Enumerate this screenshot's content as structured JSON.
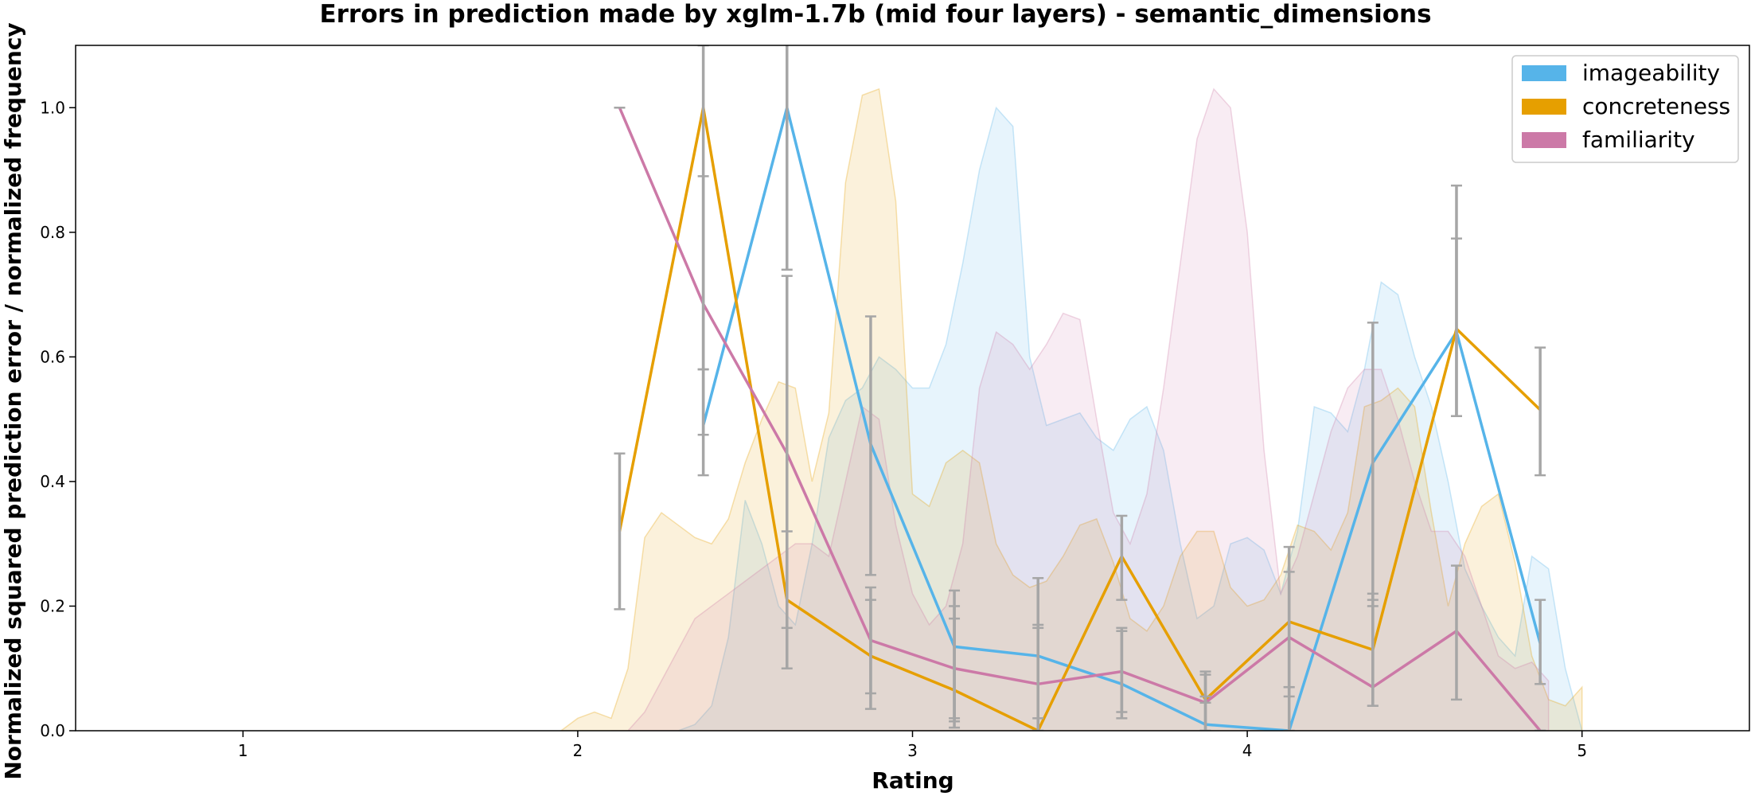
{
  "chart_data": {
    "type": "line",
    "title": "Errors in prediction made by xglm-1.7b (mid four layers) - semantic_dimensions",
    "xlabel": "Rating",
    "ylabel": "Normalized squared prediction error / normalized frequency",
    "xlim": [
      0.5,
      5.5
    ],
    "ylim": [
      0,
      1.1
    ],
    "xticks": [
      1,
      2,
      3,
      4,
      5
    ],
    "yticks": [
      0.0,
      0.2,
      0.4,
      0.6,
      0.8,
      1.0
    ],
    "xtick_labels": [
      "1",
      "2",
      "3",
      "4",
      "5"
    ],
    "ytick_labels": [
      "0.0",
      "0.2",
      "0.4",
      "0.6",
      "0.8",
      "1.0"
    ],
    "legend_position": "top-right",
    "grid": false,
    "error_bar_color": "#a6a6a6",
    "series": [
      {
        "name": "imageability",
        "color": "#56b4e9",
        "x": [
          2.375,
          2.625,
          2.875,
          3.125,
          3.375,
          3.625,
          3.875,
          4.125,
          4.375,
          4.625,
          4.875
        ],
        "y": [
          0.49,
          1.0,
          0.46,
          0.135,
          0.12,
          0.075,
          0.01,
          0.0,
          0.43,
          0.64,
          0.14
        ],
        "err_low": [
          0.41,
          0.74,
          0.25,
          0.02,
          0.02,
          0.02,
          0.0,
          0.0,
          0.21,
          0.505,
          0.075
        ],
        "err_high": [
          0.58,
          1.26,
          0.665,
          0.225,
          0.245,
          0.165,
          0.095,
          0.07,
          0.655,
          0.79,
          0.21
        ],
        "hist_x": [
          2.15,
          2.2,
          2.25,
          2.3,
          2.35,
          2.4,
          2.45,
          2.5,
          2.55,
          2.6,
          2.65,
          2.7,
          2.75,
          2.8,
          2.85,
          2.9,
          2.95,
          3.0,
          3.05,
          3.1,
          3.15,
          3.2,
          3.25,
          3.3,
          3.35,
          3.4,
          3.45,
          3.5,
          3.55,
          3.6,
          3.65,
          3.7,
          3.75,
          3.8,
          3.85,
          3.9,
          3.95,
          4.0,
          4.05,
          4.1,
          4.15,
          4.2,
          4.25,
          4.3,
          4.35,
          4.4,
          4.45,
          4.5,
          4.55,
          4.6,
          4.65,
          4.7,
          4.75,
          4.8,
          4.85,
          4.9,
          4.95,
          5.0
        ],
        "hist_y": [
          0.0,
          0.0,
          0.0,
          0.0,
          0.01,
          0.04,
          0.15,
          0.37,
          0.3,
          0.2,
          0.17,
          0.3,
          0.47,
          0.53,
          0.55,
          0.6,
          0.58,
          0.55,
          0.55,
          0.62,
          0.75,
          0.9,
          1.0,
          0.97,
          0.6,
          0.49,
          0.5,
          0.51,
          0.47,
          0.45,
          0.5,
          0.52,
          0.45,
          0.3,
          0.18,
          0.2,
          0.3,
          0.31,
          0.29,
          0.22,
          0.32,
          0.52,
          0.51,
          0.48,
          0.58,
          0.72,
          0.7,
          0.6,
          0.52,
          0.4,
          0.26,
          0.2,
          0.15,
          0.12,
          0.28,
          0.26,
          0.1,
          0.0
        ]
      },
      {
        "name": "concreteness",
        "color": "#e69f00",
        "x": [
          2.125,
          2.375,
          2.625,
          2.875,
          3.125,
          3.375,
          3.625,
          3.875,
          4.125,
          4.375,
          4.625,
          4.875
        ],
        "y": [
          0.32,
          1.0,
          0.21,
          0.12,
          0.065,
          0.0,
          0.28,
          0.05,
          0.175,
          0.13,
          0.645,
          0.515
        ],
        "err_low": [
          0.195,
          0.58,
          0.1,
          0.035,
          0.005,
          0.0,
          0.21,
          0.045,
          0.055,
          0.04,
          0.505,
          0.41
        ],
        "err_high": [
          0.445,
          1.1,
          0.32,
          0.21,
          0.2,
          0.165,
          0.345,
          0.055,
          0.295,
          0.22,
          0.875,
          0.615
        ],
        "hist_x": [
          1.95,
          2.0,
          2.05,
          2.1,
          2.15,
          2.2,
          2.25,
          2.3,
          2.35,
          2.4,
          2.45,
          2.5,
          2.55,
          2.6,
          2.65,
          2.7,
          2.75,
          2.8,
          2.85,
          2.9,
          2.95,
          3.0,
          3.05,
          3.1,
          3.15,
          3.2,
          3.25,
          3.3,
          3.35,
          3.4,
          3.45,
          3.5,
          3.55,
          3.6,
          3.65,
          3.7,
          3.75,
          3.8,
          3.85,
          3.9,
          3.95,
          4.0,
          4.05,
          4.1,
          4.15,
          4.2,
          4.25,
          4.3,
          4.35,
          4.4,
          4.45,
          4.5,
          4.55,
          4.6,
          4.65,
          4.7,
          4.75,
          4.8,
          4.85,
          4.9,
          4.95,
          5.0
        ],
        "hist_y": [
          0.0,
          0.02,
          0.03,
          0.02,
          0.1,
          0.31,
          0.35,
          0.33,
          0.31,
          0.3,
          0.34,
          0.43,
          0.5,
          0.56,
          0.55,
          0.4,
          0.51,
          0.88,
          1.02,
          1.03,
          0.85,
          0.38,
          0.36,
          0.43,
          0.45,
          0.43,
          0.3,
          0.25,
          0.23,
          0.24,
          0.28,
          0.33,
          0.34,
          0.27,
          0.18,
          0.16,
          0.2,
          0.28,
          0.32,
          0.32,
          0.23,
          0.2,
          0.21,
          0.25,
          0.33,
          0.32,
          0.29,
          0.35,
          0.52,
          0.53,
          0.55,
          0.52,
          0.35,
          0.2,
          0.3,
          0.36,
          0.38,
          0.27,
          0.12,
          0.05,
          0.04,
          0.07
        ]
      },
      {
        "name": "familiarity",
        "color": "#cc79a7",
        "x": [
          2.125,
          2.375,
          2.625,
          2.875,
          3.125,
          3.375,
          3.625,
          3.875,
          4.125,
          4.375,
          4.625,
          4.875
        ],
        "y": [
          1.0,
          0.685,
          0.445,
          0.145,
          0.1,
          0.075,
          0.095,
          0.045,
          0.15,
          0.07,
          0.16,
          0.0
        ],
        "err_low": [
          1.0,
          0.475,
          0.165,
          0.06,
          0.015,
          0.0,
          0.03,
          0.0,
          0.07,
          0.04,
          0.05,
          0.0
        ],
        "err_high": [
          1.0,
          0.89,
          0.73,
          0.23,
          0.18,
          0.17,
          0.16,
          0.09,
          0.255,
          0.2,
          0.265,
          0.0
        ],
        "hist_x": [
          2.1,
          2.15,
          2.2,
          2.25,
          2.3,
          2.35,
          2.4,
          2.45,
          2.5,
          2.55,
          2.6,
          2.65,
          2.7,
          2.75,
          2.8,
          2.85,
          2.9,
          2.95,
          3.0,
          3.05,
          3.1,
          3.15,
          3.2,
          3.25,
          3.3,
          3.35,
          3.4,
          3.45,
          3.5,
          3.55,
          3.6,
          3.65,
          3.7,
          3.75,
          3.8,
          3.85,
          3.9,
          3.95,
          4.0,
          4.05,
          4.1,
          4.15,
          4.2,
          4.25,
          4.3,
          4.35,
          4.4,
          4.45,
          4.5,
          4.55,
          4.6,
          4.65,
          4.7,
          4.75,
          4.8,
          4.85,
          4.9
        ],
        "hist_y": [
          0.0,
          0.0,
          0.03,
          0.08,
          0.13,
          0.18,
          0.2,
          0.22,
          0.24,
          0.26,
          0.28,
          0.3,
          0.3,
          0.28,
          0.4,
          0.52,
          0.5,
          0.33,
          0.22,
          0.17,
          0.2,
          0.3,
          0.55,
          0.64,
          0.62,
          0.58,
          0.62,
          0.67,
          0.66,
          0.5,
          0.35,
          0.3,
          0.38,
          0.55,
          0.75,
          0.95,
          1.03,
          1.0,
          0.8,
          0.45,
          0.22,
          0.28,
          0.38,
          0.48,
          0.55,
          0.58,
          0.58,
          0.5,
          0.4,
          0.32,
          0.32,
          0.28,
          0.2,
          0.12,
          0.1,
          0.11,
          0.08
        ]
      }
    ]
  }
}
